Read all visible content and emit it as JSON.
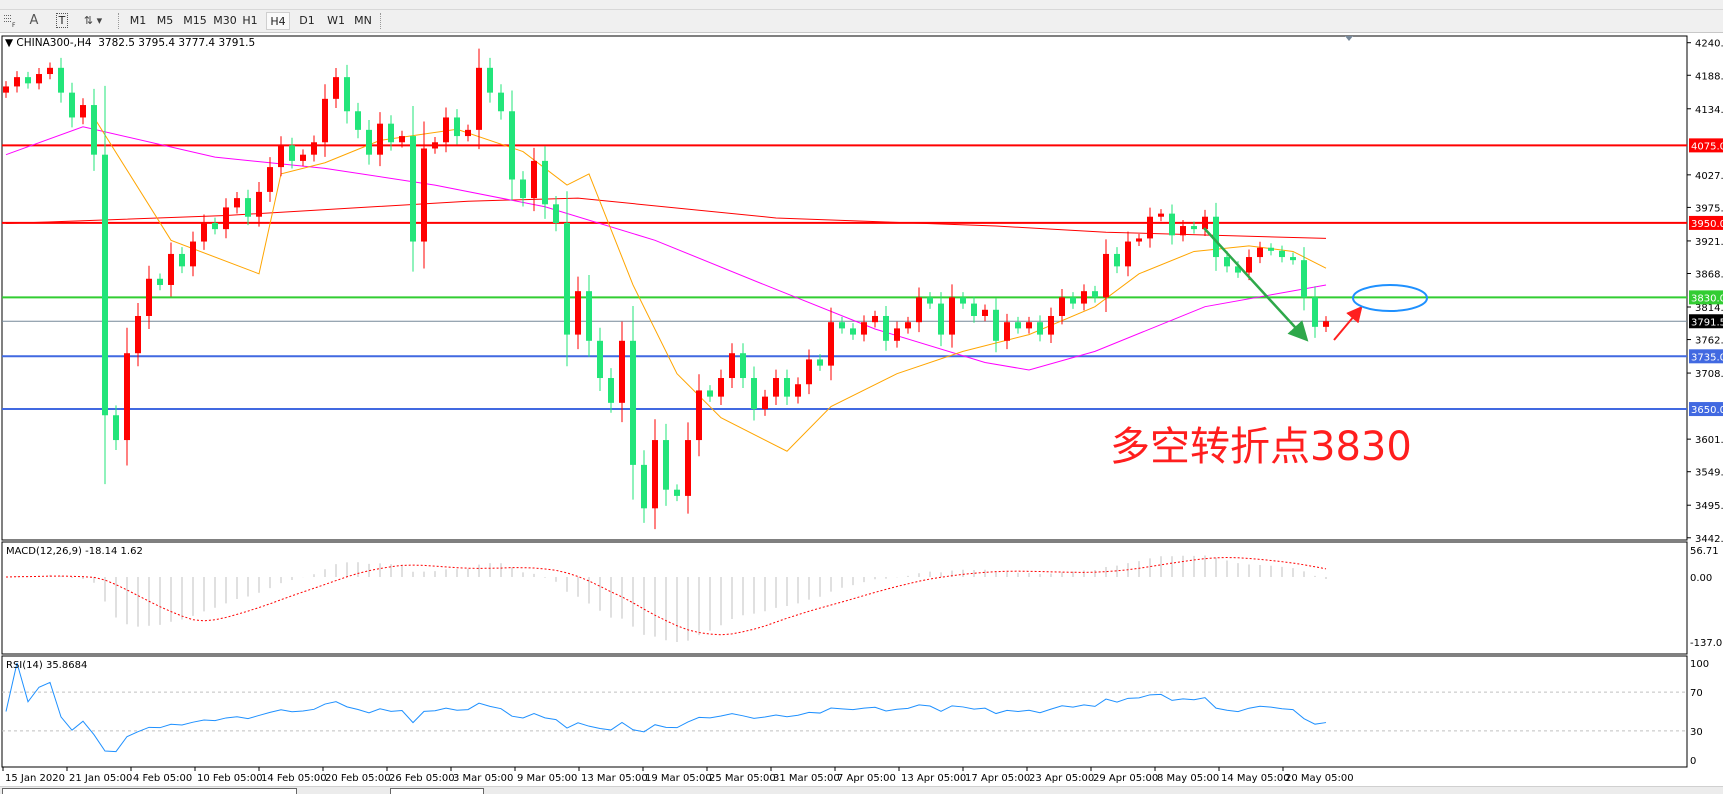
{
  "toolbar": {
    "icons": [
      "grid-icon",
      "text-a-icon",
      "text-label-icon",
      "arrows-dropdown-icon"
    ],
    "text_a": "A",
    "text_t": "T",
    "timeframes": [
      "M1",
      "M5",
      "M15",
      "M30",
      "H1",
      "H4",
      "D1",
      "W1",
      "MN"
    ],
    "active_timeframe": "H4"
  },
  "chart_header": {
    "symbol": "CHINA300-,H4",
    "ohlc": "3782.5 3795.4 3777.4 3791.5"
  },
  "annotation": {
    "text": "多空转折点3830"
  },
  "chart_data": {
    "type": "candlestick",
    "colors": {
      "bull": "#ff0000",
      "bear": "#22e57a",
      "ma_fast": "#ffa500",
      "ma_mid": "#ff00ff",
      "ma_slow": "#ff0000"
    },
    "first_open": 4160,
    "close": [
      4170,
      4185,
      4175,
      4190,
      4200,
      4160,
      4120,
      4140,
      4060,
      3640,
      3600,
      3740,
      3800,
      3860,
      3850,
      3900,
      3880,
      3920,
      3950,
      3940,
      3975,
      3990,
      3960,
      4000,
      4040,
      4075,
      4050,
      4060,
      4080,
      4150,
      4185,
      4130,
      4100,
      4060,
      4110,
      4080,
      4090,
      3920,
      4070,
      4080,
      4120,
      4090,
      4100,
      4200,
      4160,
      4130,
      4020,
      3990,
      4050,
      3980,
      3950,
      3770,
      3840,
      3760,
      3700,
      3660,
      3760,
      3560,
      3490,
      3600,
      3520,
      3510,
      3600,
      3680,
      3670,
      3700,
      3740,
      3700,
      3650,
      3670,
      3700,
      3670,
      3690,
      3730,
      3720,
      3790,
      3780,
      3770,
      3790,
      3800,
      3760,
      3780,
      3790,
      3830,
      3820,
      3770,
      3830,
      3820,
      3800,
      3810,
      3760,
      3790,
      3780,
      3790,
      3770,
      3800,
      3830,
      3820,
      3840,
      3830,
      3900,
      3880,
      3920,
      3925,
      3960,
      3965,
      3930,
      3945,
      3940,
      3960,
      3895,
      3880,
      3870,
      3895,
      3910,
      3905,
      3895,
      3890,
      3830,
      3782.5,
      3791.5
    ],
    "ma_fast": [
      [
        8,
        4120
      ],
      [
        15,
        3922
      ],
      [
        23,
        3868
      ],
      [
        25,
        4029
      ],
      [
        29,
        4047
      ],
      [
        34,
        4083
      ],
      [
        41,
        4101
      ],
      [
        47,
        4065
      ],
      [
        51,
        4011
      ],
      [
        53,
        4029
      ],
      [
        57,
        3850
      ],
      [
        61,
        3707
      ],
      [
        65,
        3636
      ],
      [
        71,
        3582
      ],
      [
        75,
        3654
      ],
      [
        81,
        3707
      ],
      [
        87,
        3743
      ],
      [
        93,
        3770
      ],
      [
        99,
        3815
      ],
      [
        103,
        3868
      ],
      [
        108,
        3904
      ],
      [
        113,
        3913
      ],
      [
        117,
        3904
      ],
      [
        120,
        3877
      ]
    ],
    "ma_mid": [
      [
        0,
        4060
      ],
      [
        7,
        4105
      ],
      [
        19,
        4056
      ],
      [
        29,
        4038
      ],
      [
        39,
        4011
      ],
      [
        49,
        3976
      ],
      [
        59,
        3922
      ],
      [
        69,
        3850
      ],
      [
        79,
        3779
      ],
      [
        89,
        3725
      ],
      [
        93,
        3713
      ],
      [
        99,
        3743
      ],
      [
        109,
        3815
      ],
      [
        120,
        3850
      ]
    ],
    "ma_slow": [
      [
        0,
        3949
      ],
      [
        20,
        3962
      ],
      [
        42,
        3985
      ],
      [
        52,
        3990
      ],
      [
        70,
        3958
      ],
      [
        90,
        3945
      ],
      [
        100,
        3935
      ],
      [
        120,
        3925
      ]
    ],
    "price_axis": {
      "range": [
        3442.5,
        4240.5
      ],
      "ticks": [
        "4240.5",
        "4188.0",
        "4134.0",
        "4027.5",
        "3975.0",
        "3921.0",
        "3868.5",
        "3814.5",
        "3762.0",
        "3708.0",
        "3601.5",
        "3549.0",
        "3495.0",
        "3442.5"
      ]
    },
    "levels": [
      {
        "value": "4075.0",
        "color": "#ff0000"
      },
      {
        "value": "3950.0",
        "color": "#ff0000"
      },
      {
        "value": "3830.0",
        "color": "#32cd32"
      },
      {
        "value": "3791.5",
        "color": "#000000",
        "line": "#778899"
      },
      {
        "value": "3735.0",
        "color": "#4169e1"
      },
      {
        "value": "3650.0",
        "color": "#4169e1"
      }
    ],
    "macd": {
      "label": "MACD(12,26,9) -18.14 1.62",
      "ticks": [
        "56.71",
        "0.00",
        "-137.01"
      ],
      "range": [
        -137.01,
        56.71
      ],
      "params": [
        12,
        26,
        9
      ]
    },
    "rsi": {
      "label": "RSI(14) 35.8684",
      "ticks": [
        "100",
        "70",
        "30",
        "0"
      ],
      "levels": [
        70,
        30
      ],
      "period": 14
    },
    "time_labels": [
      "15 Jan 2020",
      "21 Jan 05:00",
      "4 Feb 05:00",
      "10 Feb 05:00",
      "14 Feb 05:00",
      "20 Feb 05:00",
      "26 Feb 05:00",
      "3 Mar 05:00",
      "9 Mar 05:00",
      "13 Mar 05:00",
      "19 Mar 05:00",
      "25 Mar 05:00",
      "31 Mar 05:00",
      "7 Apr 05:00",
      "13 Apr 05:00",
      "17 Apr 05:00",
      "23 Apr 05:00",
      "29 Apr 05:00",
      "8 May 05:00",
      "14 May 05:00",
      "20 May 05:00"
    ]
  }
}
